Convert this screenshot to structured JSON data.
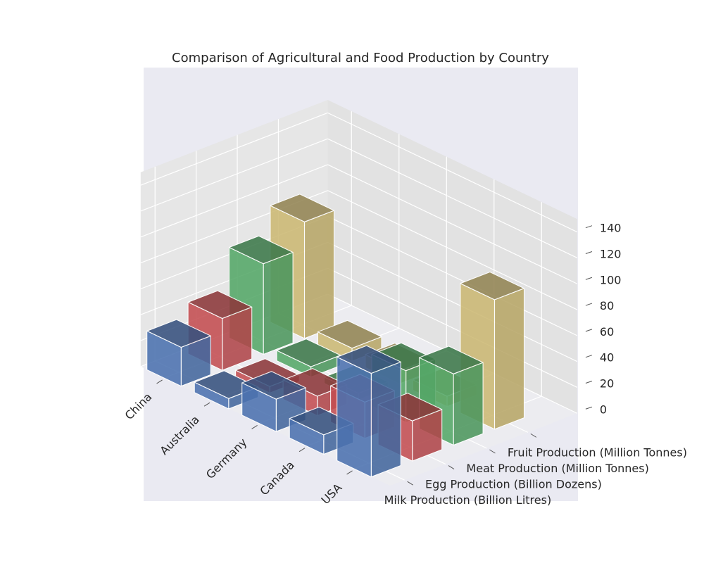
{
  "chart_data": {
    "type": "bar3d",
    "title": "Comparison of Agricultural and Food Production by Country",
    "categories": [
      "China",
      "Australia",
      "Germany",
      "Canada",
      "USA"
    ],
    "series": [
      {
        "name": "Milk Production (Billion Litres)",
        "values": [
          30,
          8,
          25,
          15,
          80
        ],
        "color": "#4c72b0"
      },
      {
        "name": "Egg Production (Billion Dozens)",
        "values": [
          40,
          5,
          15,
          28,
          31
        ],
        "color": "#c44e52"
      },
      {
        "name": "Meat Production (Million Tonnes)",
        "values": [
          70,
          8,
          5,
          40,
          55
        ],
        "color": "#55a868"
      },
      {
        "name": "Fruit Production (Million Tonnes)",
        "values": [
          90,
          10,
          10,
          8,
          100
        ],
        "color": "#ccb974"
      }
    ],
    "zticks": [
      0,
      20,
      40,
      60,
      80,
      100,
      120,
      140
    ],
    "zlim": [
      0,
      140
    ],
    "grid": true
  }
}
